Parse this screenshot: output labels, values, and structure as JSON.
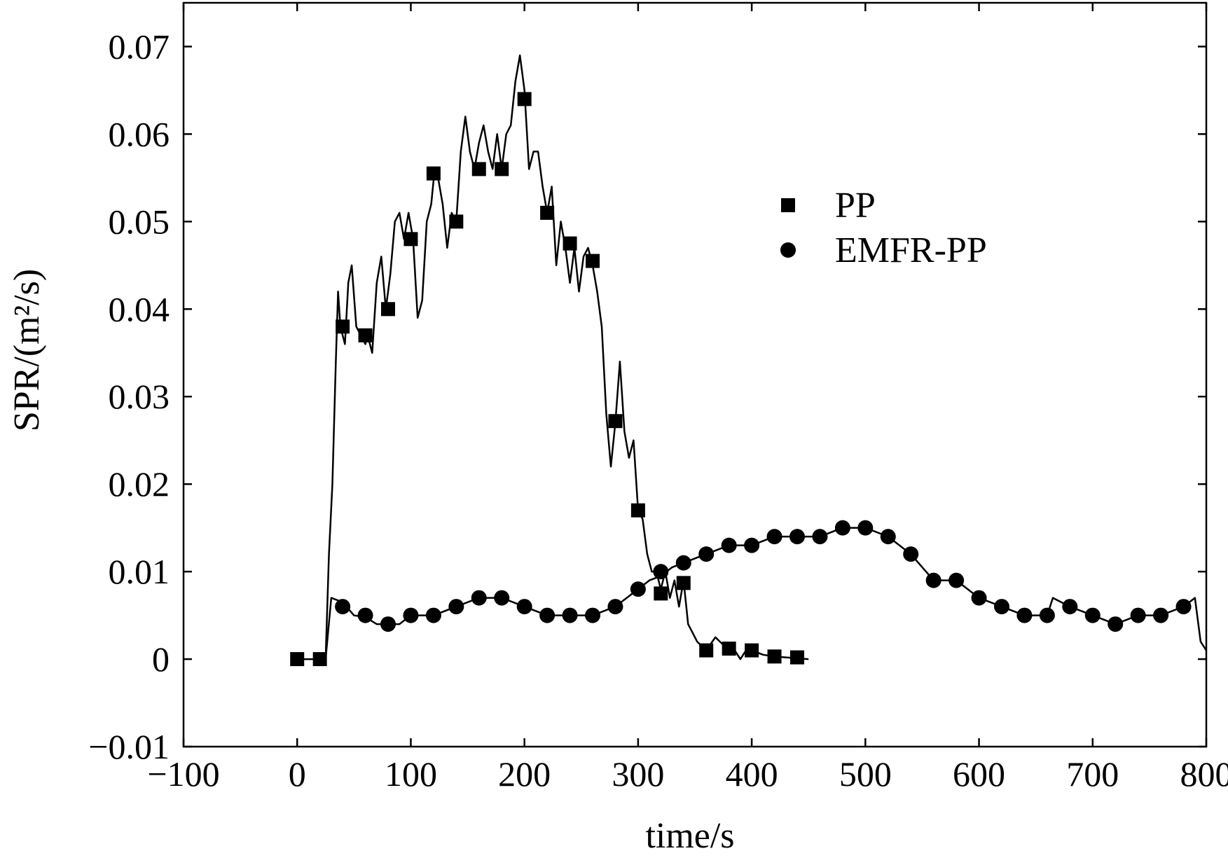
{
  "chart_data": {
    "type": "line",
    "xlabel": "time/s",
    "ylabel": "SPR/(m²/s)",
    "xlim": [
      -100,
      800
    ],
    "ylim": [
      -0.01,
      0.075
    ],
    "x_ticks": [
      -100,
      0,
      100,
      200,
      300,
      400,
      500,
      600,
      700,
      800
    ],
    "x_tick_labels": [
      "−100",
      "0",
      "100",
      "200",
      "300",
      "400",
      "500",
      "600",
      "700",
      "800"
    ],
    "y_ticks": [
      -0.01,
      0,
      0.01,
      0.02,
      0.03,
      0.04,
      0.05,
      0.06,
      0.07
    ],
    "y_tick_labels": [
      "−0.01",
      "0",
      "0.01",
      "0.02",
      "0.03",
      "0.04",
      "0.05",
      "0.06",
      "0.07"
    ],
    "grid": false,
    "legend_position": "upper-right",
    "series": [
      {
        "name": "PP",
        "marker": "square",
        "color": "#000000",
        "line": [
          [
            0,
            0
          ],
          [
            25,
            0
          ],
          [
            28,
            0.012
          ],
          [
            31,
            0.02
          ],
          [
            34,
            0.034
          ],
          [
            36,
            0.042
          ],
          [
            38,
            0.038
          ],
          [
            42,
            0.036
          ],
          [
            45,
            0.043
          ],
          [
            48,
            0.045
          ],
          [
            52,
            0.038
          ],
          [
            56,
            0.037
          ],
          [
            60,
            0.036
          ],
          [
            62,
            0.037
          ],
          [
            66,
            0.035
          ],
          [
            70,
            0.043
          ],
          [
            74,
            0.046
          ],
          [
            78,
            0.04
          ],
          [
            82,
            0.044
          ],
          [
            86,
            0.05
          ],
          [
            90,
            0.051
          ],
          [
            94,
            0.048
          ],
          [
            98,
            0.051
          ],
          [
            102,
            0.048
          ],
          [
            106,
            0.039
          ],
          [
            110,
            0.041
          ],
          [
            114,
            0.05
          ],
          [
            118,
            0.052
          ],
          [
            121,
            0.056
          ],
          [
            124,
            0.055
          ],
          [
            128,
            0.052
          ],
          [
            132,
            0.047
          ],
          [
            136,
            0.051
          ],
          [
            140,
            0.05
          ],
          [
            144,
            0.058
          ],
          [
            148,
            0.062
          ],
          [
            152,
            0.058
          ],
          [
            156,
            0.056
          ],
          [
            160,
            0.059
          ],
          [
            164,
            0.061
          ],
          [
            168,
            0.058
          ],
          [
            172,
            0.056
          ],
          [
            176,
            0.06
          ],
          [
            180,
            0.056
          ],
          [
            184,
            0.06
          ],
          [
            188,
            0.061
          ],
          [
            192,
            0.066
          ],
          [
            196,
            0.069
          ],
          [
            200,
            0.065
          ],
          [
            204,
            0.056
          ],
          [
            208,
            0.058
          ],
          [
            212,
            0.058
          ],
          [
            216,
            0.054
          ],
          [
            220,
            0.051
          ],
          [
            224,
            0.054
          ],
          [
            228,
            0.045
          ],
          [
            232,
            0.05
          ],
          [
            236,
            0.047
          ],
          [
            240,
            0.043
          ],
          [
            244,
            0.047
          ],
          [
            248,
            0.042
          ],
          [
            252,
            0.046
          ],
          [
            256,
            0.047
          ],
          [
            260,
            0.045
          ],
          [
            264,
            0.042
          ],
          [
            268,
            0.038
          ],
          [
            272,
            0.028
          ],
          [
            276,
            0.022
          ],
          [
            280,
            0.027
          ],
          [
            284,
            0.034
          ],
          [
            288,
            0.026
          ],
          [
            292,
            0.023
          ],
          [
            296,
            0.025
          ],
          [
            300,
            0.017
          ],
          [
            304,
            0.016
          ],
          [
            308,
            0.012
          ],
          [
            312,
            0.01
          ],
          [
            316,
            0.01
          ],
          [
            320,
            0.008
          ],
          [
            324,
            0.01
          ],
          [
            328,
            0.007
          ],
          [
            332,
            0.009
          ],
          [
            336,
            0.006
          ],
          [
            340,
            0.009
          ],
          [
            344,
            0.004
          ],
          [
            348,
            0.003
          ],
          [
            352,
            0.002
          ],
          [
            356,
            0.0015
          ],
          [
            360,
            0.001
          ],
          [
            368,
            0.0025
          ],
          [
            372,
            0.002
          ],
          [
            380,
            0.001
          ],
          [
            385,
            0.001
          ],
          [
            390,
            0
          ],
          [
            395,
            0.001
          ],
          [
            400,
            0.001
          ],
          [
            410,
            0.0005
          ],
          [
            420,
            0.0003
          ],
          [
            430,
            0.0002
          ],
          [
            440,
            0.0001
          ],
          [
            450,
            0
          ]
        ],
        "markers": [
          [
            0,
            0
          ],
          [
            20,
            0
          ],
          [
            40,
            0.038
          ],
          [
            60,
            0.037
          ],
          [
            80,
            0.04
          ],
          [
            100,
            0.048
          ],
          [
            120,
            0.0555
          ],
          [
            140,
            0.05
          ],
          [
            160,
            0.056
          ],
          [
            180,
            0.056
          ],
          [
            200,
            0.064
          ],
          [
            220,
            0.051
          ],
          [
            240,
            0.0475
          ],
          [
            260,
            0.0455
          ],
          [
            280,
            0.0272
          ],
          [
            300,
            0.017
          ],
          [
            320,
            0.0075
          ],
          [
            340,
            0.0087
          ],
          [
            360,
            0.001
          ],
          [
            380,
            0.0012
          ],
          [
            400,
            0.001
          ],
          [
            420,
            0.0003
          ],
          [
            440,
            0.0002
          ]
        ]
      },
      {
        "name": "EMFR-PP",
        "marker": "circle",
        "color": "#000000",
        "line": [
          [
            25,
            0
          ],
          [
            30,
            0.007
          ],
          [
            40,
            0.0065
          ],
          [
            50,
            0.005
          ],
          [
            60,
            0.0048
          ],
          [
            70,
            0.004
          ],
          [
            80,
            0.004
          ],
          [
            90,
            0.004
          ],
          [
            100,
            0.005
          ],
          [
            120,
            0.005
          ],
          [
            140,
            0.006
          ],
          [
            160,
            0.007
          ],
          [
            180,
            0.007
          ],
          [
            200,
            0.006
          ],
          [
            220,
            0.005
          ],
          [
            240,
            0.005
          ],
          [
            260,
            0.005
          ],
          [
            280,
            0.006
          ],
          [
            290,
            0.007
          ],
          [
            300,
            0.008
          ],
          [
            310,
            0.009
          ],
          [
            320,
            0.0095
          ],
          [
            330,
            0.0105
          ],
          [
            340,
            0.011
          ],
          [
            360,
            0.012
          ],
          [
            380,
            0.013
          ],
          [
            400,
            0.013
          ],
          [
            420,
            0.014
          ],
          [
            440,
            0.014
          ],
          [
            460,
            0.014
          ],
          [
            480,
            0.015
          ],
          [
            500,
            0.015
          ],
          [
            520,
            0.014
          ],
          [
            540,
            0.012
          ],
          [
            560,
            0.009
          ],
          [
            580,
            0.009
          ],
          [
            600,
            0.007
          ],
          [
            620,
            0.006
          ],
          [
            640,
            0.005
          ],
          [
            660,
            0.005
          ],
          [
            665,
            0.007
          ],
          [
            680,
            0.006
          ],
          [
            700,
            0.005
          ],
          [
            720,
            0.004
          ],
          [
            740,
            0.005
          ],
          [
            760,
            0.005
          ],
          [
            780,
            0.006
          ],
          [
            790,
            0.007
          ],
          [
            795,
            0.002
          ],
          [
            800,
            0.001
          ]
        ],
        "markers": [
          [
            40,
            0.006
          ],
          [
            60,
            0.005
          ],
          [
            80,
            0.004
          ],
          [
            100,
            0.005
          ],
          [
            120,
            0.005
          ],
          [
            140,
            0.006
          ],
          [
            160,
            0.007
          ],
          [
            180,
            0.007
          ],
          [
            200,
            0.006
          ],
          [
            220,
            0.005
          ],
          [
            240,
            0.005
          ],
          [
            260,
            0.005
          ],
          [
            280,
            0.006
          ],
          [
            300,
            0.008
          ],
          [
            320,
            0.01
          ],
          [
            340,
            0.011
          ],
          [
            360,
            0.012
          ],
          [
            380,
            0.013
          ],
          [
            400,
            0.013
          ],
          [
            420,
            0.014
          ],
          [
            440,
            0.014
          ],
          [
            460,
            0.014
          ],
          [
            480,
            0.015
          ],
          [
            500,
            0.015
          ],
          [
            520,
            0.014
          ],
          [
            540,
            0.012
          ],
          [
            560,
            0.009
          ],
          [
            580,
            0.009
          ],
          [
            600,
            0.007
          ],
          [
            620,
            0.006
          ],
          [
            640,
            0.005
          ],
          [
            660,
            0.005
          ],
          [
            680,
            0.006
          ],
          [
            700,
            0.005
          ],
          [
            720,
            0.004
          ],
          [
            740,
            0.005
          ],
          [
            760,
            0.005
          ],
          [
            780,
            0.006
          ]
        ]
      }
    ]
  }
}
